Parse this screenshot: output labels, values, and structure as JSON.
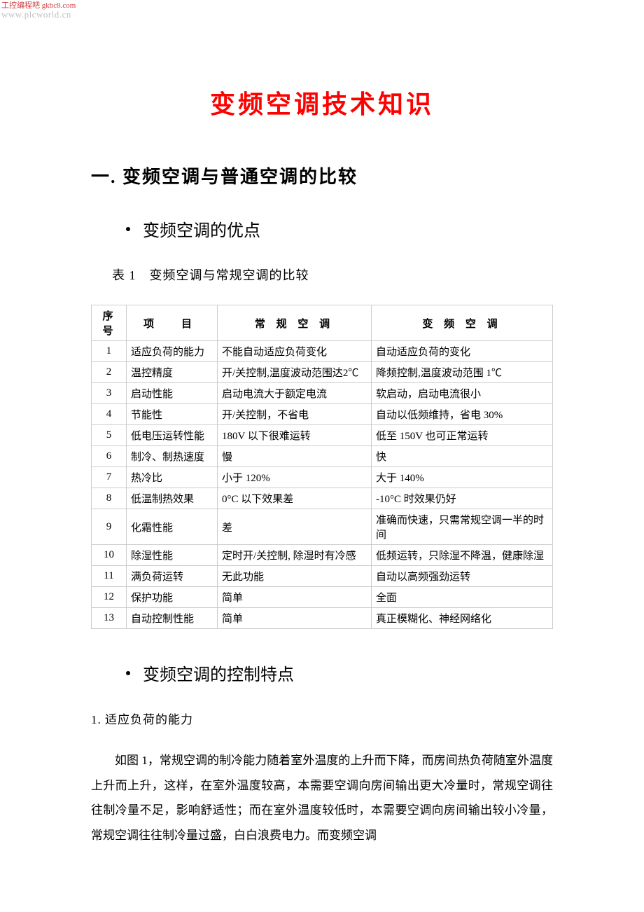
{
  "watermark": {
    "line1": "工控编程吧 gkbc8.com",
    "line2": "www.plcworld.cn"
  },
  "title": "变频空调技术知识",
  "section1_heading": "一. 变频空调与普通空调的比较",
  "bullet1": "变频空调的优点",
  "table_caption": "表 1　变频空调与常规空调的比较",
  "table": {
    "headers": {
      "seq": "序 号",
      "item": "项　目",
      "regular": "常 规 空 调",
      "inverter": "变 频 空 调"
    },
    "rows": [
      {
        "seq": "1",
        "item": "适应负荷的能力",
        "reg": "不能自动适应负荷变化",
        "inv": "自动适应负荷的变化"
      },
      {
        "seq": "2",
        "item": "温控精度",
        "reg": "开/关控制,温度波动范围达2℃",
        "inv": "降频控制,温度波动范围 1℃"
      },
      {
        "seq": "3",
        "item": "启动性能",
        "reg": "启动电流大于额定电流",
        "inv": "软启动，启动电流很小"
      },
      {
        "seq": "4",
        "item": "节能性",
        "reg": "开/关控制，不省电",
        "inv": "自动以低频维持，省电 30%"
      },
      {
        "seq": "5",
        "item": "低电压运转性能",
        "reg": "180V 以下很难运转",
        "inv": "低至 150V 也可正常运转"
      },
      {
        "seq": "6",
        "item": "制冷、制热速度",
        "reg": "慢",
        "inv": "快"
      },
      {
        "seq": "7",
        "item": "热冷比",
        "reg": "小于 120%",
        "inv": "大于 140%"
      },
      {
        "seq": "8",
        "item": "低温制热效果",
        "reg": "0°C 以下效果差",
        "inv": "-10°C 时效果仍好"
      },
      {
        "seq": "9",
        "item": "化霜性能",
        "reg": "差",
        "inv": "准确而快速，只需常规空调一半的时间"
      },
      {
        "seq": "10",
        "item": "除湿性能",
        "reg": "定时开/关控制, 除湿时有冷感",
        "inv": "低频运转，只除湿不降温，健康除湿"
      },
      {
        "seq": "11",
        "item": "满负荷运转",
        "reg": "无此功能",
        "inv": "自动以高频强劲运转"
      },
      {
        "seq": "12",
        "item": "保护功能",
        "reg": "简单",
        "inv": "全面"
      },
      {
        "seq": "13",
        "item": "自动控制性能",
        "reg": "简单",
        "inv": "真正模糊化、神经网络化"
      }
    ]
  },
  "bullet2": "变频空调的控制特点",
  "subheading1": "1. 适应负荷的能力",
  "paragraph1": "如图 1，常规空调的制冷能力随着室外温度的上升而下降，而房间热负荷随室外温度上升而上升，这样，在室外温度较高，本需要空调向房间输出更大冷量时，常规空调往往制冷量不足，影响舒适性；而在室外温度较低时，本需要空调向房间输出较小冷量，常规空调往往制冷量过盛，白白浪费电力。而变频空调",
  "styles": {
    "title_color": "#ff0000",
    "text_color": "#000000",
    "border_color": "#cccccc",
    "background": "#ffffff",
    "watermark_color1": "#d04040",
    "watermark_color2": "#c0c0c0",
    "title_fontsize": 36,
    "h1_fontsize": 26,
    "bullet_fontsize": 24,
    "body_fontsize": 17,
    "table_fontsize": 15
  }
}
